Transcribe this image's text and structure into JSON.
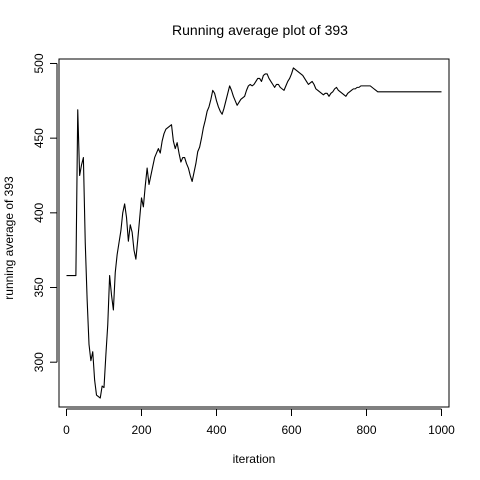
{
  "chart_data": {
    "type": "line",
    "title": "Running average plot of 393",
    "xlabel": "iteration",
    "ylabel": "running average of 393",
    "xlim": [
      -20,
      1020
    ],
    "ylim": [
      270,
      503
    ],
    "xticks": [
      0,
      200,
      400,
      600,
      800,
      1000
    ],
    "yticks": [
      300,
      350,
      400,
      450,
      500
    ],
    "xtick_labels": [
      "0",
      "200",
      "400",
      "600",
      "800",
      "1000"
    ],
    "ytick_labels": [
      "300",
      "350",
      "400",
      "450",
      "500"
    ],
    "grid": false,
    "legend": "none",
    "series": [
      {
        "color": "#000000",
        "x": [
          0,
          10,
          20,
          25,
          30,
          35,
          40,
          45,
          50,
          55,
          60,
          65,
          70,
          75,
          80,
          85,
          90,
          95,
          100,
          105,
          110,
          115,
          120,
          125,
          130,
          135,
          140,
          145,
          150,
          155,
          160,
          165,
          170,
          175,
          180,
          185,
          190,
          195,
          200,
          205,
          210,
          215,
          220,
          225,
          230,
          235,
          240,
          245,
          250,
          255,
          260,
          265,
          270,
          275,
          280,
          285,
          290,
          295,
          300,
          305,
          310,
          315,
          320,
          325,
          330,
          335,
          340,
          345,
          350,
          355,
          360,
          365,
          370,
          375,
          380,
          385,
          390,
          395,
          400,
          405,
          410,
          415,
          420,
          425,
          430,
          435,
          440,
          445,
          450,
          455,
          460,
          465,
          470,
          475,
          480,
          485,
          490,
          495,
          500,
          505,
          510,
          515,
          520,
          525,
          530,
          535,
          540,
          545,
          550,
          555,
          560,
          565,
          570,
          575,
          580,
          585,
          590,
          595,
          600,
          605,
          610,
          615,
          620,
          625,
          630,
          635,
          640,
          645,
          650,
          655,
          660,
          665,
          670,
          675,
          680,
          685,
          690,
          695,
          700,
          705,
          710,
          715,
          720,
          725,
          730,
          735,
          740,
          745,
          750,
          755,
          760,
          765,
          770,
          775,
          780,
          785,
          790,
          795,
          800,
          805,
          810,
          815,
          820,
          825,
          830,
          835,
          840,
          845,
          850,
          855,
          860,
          865,
          870,
          875,
          880,
          885,
          890,
          895,
          900,
          905,
          910,
          915,
          920,
          925,
          930,
          935,
          940,
          945,
          950,
          955,
          960,
          965,
          970,
          975,
          980,
          985,
          990,
          995,
          1000
        ],
        "y": [
          358,
          358,
          358,
          358,
          469,
          425,
          432,
          437,
          380,
          342,
          312,
          301,
          307,
          288,
          278,
          277,
          276,
          284,
          283,
          305,
          325,
          358,
          345,
          335,
          360,
          372,
          380,
          388,
          400,
          406,
          397,
          381,
          392,
          387,
          375,
          369,
          382,
          396,
          410,
          404,
          418,
          430,
          419,
          425,
          431,
          437,
          440,
          443,
          440,
          448,
          453,
          456,
          457,
          458,
          459,
          448,
          443,
          447,
          440,
          434,
          437,
          437,
          433,
          430,
          425,
          421,
          427,
          433,
          441,
          444,
          450,
          457,
          462,
          468,
          471,
          476,
          482,
          480,
          475,
          471,
          468,
          466,
          470,
          475,
          480,
          485,
          482,
          478,
          475,
          472,
          474,
          476,
          477,
          478,
          482,
          485,
          486,
          485,
          486,
          488,
          490,
          490,
          488,
          492,
          493,
          493,
          490,
          488,
          486,
          484,
          486,
          486,
          484,
          483,
          482,
          485,
          488,
          490,
          493,
          497,
          496,
          495,
          494,
          493,
          492,
          490,
          488,
          486,
          487,
          488,
          486,
          483,
          482,
          481,
          480,
          479,
          480,
          480,
          478,
          480,
          481,
          483,
          484,
          482,
          481,
          480,
          479,
          478,
          480,
          481,
          482,
          483,
          483,
          484,
          484,
          485,
          485,
          485,
          485,
          485,
          485,
          484,
          483,
          482,
          481,
          481,
          481,
          481,
          481,
          481,
          481,
          481,
          481,
          481,
          481,
          481,
          481,
          481,
          481,
          481,
          481,
          481,
          481,
          481,
          481,
          481,
          481,
          481,
          481,
          481,
          481,
          481,
          481,
          481,
          481,
          481,
          481,
          481,
          481
        ]
      }
    ]
  }
}
